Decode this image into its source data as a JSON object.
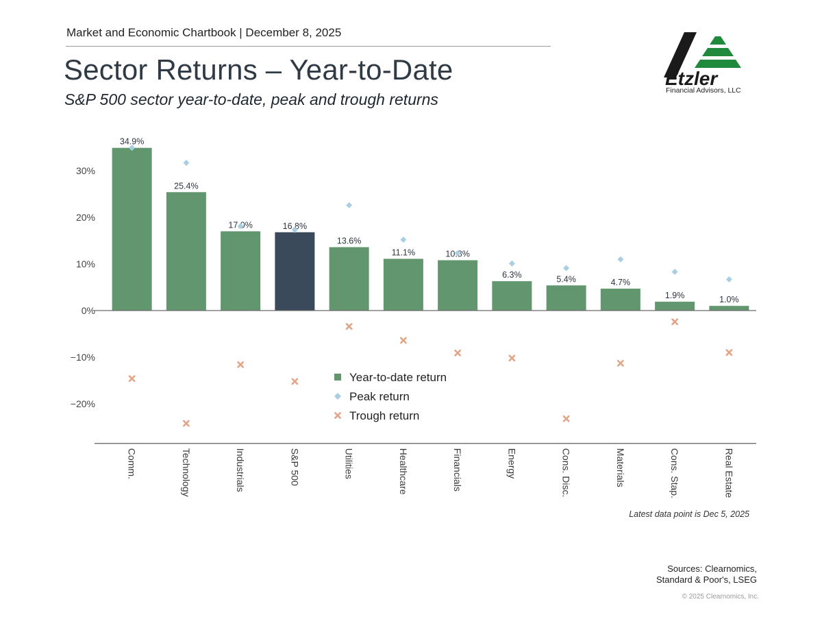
{
  "header": {
    "chartbook": "Market and Economic Chartbook | December 8, 2025",
    "title": "Sector Returns – Year-to-Date",
    "subtitle": "S&P 500 sector year-to-date, peak and trough returns"
  },
  "logo": {
    "name": "Etzler",
    "tagline": "Financial Advisors, LLC",
    "colors": {
      "dark": "#1a1a1a",
      "green": "#1f8a3c"
    }
  },
  "footer": {
    "note": "Latest data point is Dec 5, 2025",
    "sources": "Sources: Clearnomics, Standard & Poor's, LSEG",
    "copyright": "© 2025 Clearnomics, Inc."
  },
  "chart_data": {
    "type": "bar",
    "categories": [
      "Comm.",
      "Technology",
      "Industrials",
      "S&P 500",
      "Utilities",
      "Healthcare",
      "Financials",
      "Energy",
      "Cons. Disc.",
      "Materials",
      "Cons. Stap.",
      "Real Estate"
    ],
    "series": [
      {
        "name": "Year-to-date return",
        "kind": "bar",
        "values": [
          34.9,
          25.4,
          17.0,
          16.8,
          13.6,
          11.1,
          10.8,
          6.3,
          5.4,
          4.7,
          1.9,
          1.0
        ]
      },
      {
        "name": "Peak return",
        "kind": "diamond",
        "values": [
          34.9,
          31.7,
          18.1,
          17.3,
          22.6,
          15.2,
          12.3,
          10.1,
          9.1,
          11.0,
          8.3,
          6.7
        ]
      },
      {
        "name": "Trough return",
        "kind": "cross",
        "values": [
          -14.6,
          -24.2,
          -11.6,
          -15.2,
          -3.4,
          -6.4,
          -9.1,
          -10.2,
          -23.2,
          -11.3,
          -2.4,
          -9.0
        ]
      }
    ],
    "data_labels": [
      "34.9%",
      "25.4%",
      "17.0%",
      "16.8%",
      "13.6%",
      "11.1%",
      "10.8%",
      "6.3%",
      "5.4%",
      "4.7%",
      "1.9%",
      "1.0%"
    ],
    "yticks": [
      30,
      20,
      10,
      0,
      -10,
      -20
    ],
    "ytick_labels": [
      "30%",
      "20%",
      "10%",
      "0%",
      "−10%",
      "−20%"
    ],
    "ylim": [
      -28.5,
      38
    ],
    "highlight_category": "S&P 500",
    "legend_position": "lower-middle",
    "grid": false,
    "colors": {
      "bar": "#62966f",
      "highlight": "#3a4a5a",
      "peak": "#a9cfe2",
      "trough": "#e3a587",
      "axis": "#6b6b6b"
    }
  }
}
